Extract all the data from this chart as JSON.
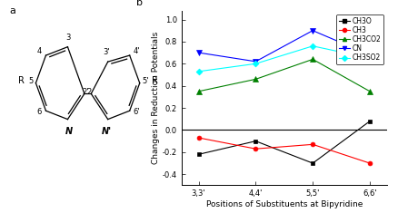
{
  "x_labels": [
    "3,3'",
    "4,4'",
    "5,5'",
    "6,6'"
  ],
  "x_positions": [
    0,
    1,
    2,
    3
  ],
  "series": {
    "CH3O": {
      "values": [
        -0.22,
        -0.1,
        -0.3,
        0.08
      ],
      "color": "black",
      "marker": "s",
      "linestyle": "-",
      "markersize": 3.5
    },
    "CH3": {
      "values": [
        -0.07,
        -0.17,
        -0.13,
        -0.3
      ],
      "color": "red",
      "marker": "o",
      "linestyle": "-",
      "markersize": 3.5
    },
    "CH3CO2": {
      "values": [
        0.35,
        0.46,
        0.64,
        0.35
      ],
      "color": "green",
      "marker": "^",
      "linestyle": "-",
      "markersize": 4
    },
    "CN": {
      "values": [
        0.7,
        0.62,
        0.9,
        0.68
      ],
      "color": "blue",
      "marker": "v",
      "linestyle": "-",
      "markersize": 4
    },
    "CH3SO2": {
      "values": [
        0.53,
        0.6,
        0.76,
        0.65
      ],
      "color": "cyan",
      "marker": "D",
      "linestyle": "-",
      "markersize": 3.5
    }
  },
  "legend_labels": [
    "CH3O",
    "CH3",
    "CH3CO2",
    "CN",
    "CH3SO2"
  ],
  "ylim": [
    -0.5,
    1.08
  ],
  "yticks": [
    -0.4,
    -0.2,
    0.0,
    0.2,
    0.4,
    0.6,
    0.8,
    1.0
  ],
  "ylabel": "Changes in Reduction Potentials",
  "xlabel": "Positions of Substituents at Bipyridine",
  "hline_y": 0.0,
  "title_b": "b",
  "title_a": "a",
  "ylabel_fontsize": 6.5,
  "xlabel_fontsize": 6.5,
  "tick_fontsize": 6,
  "legend_fontsize": 5.5
}
